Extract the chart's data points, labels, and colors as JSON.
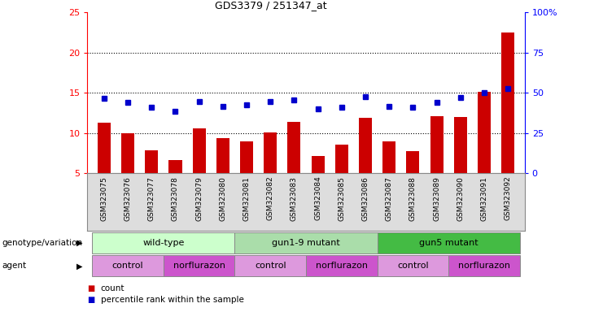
{
  "title": "GDS3379 / 251347_at",
  "samples": [
    "GSM323075",
    "GSM323076",
    "GSM323077",
    "GSM323078",
    "GSM323079",
    "GSM323080",
    "GSM323081",
    "GSM323082",
    "GSM323083",
    "GSM323084",
    "GSM323085",
    "GSM323086",
    "GSM323087",
    "GSM323088",
    "GSM323089",
    "GSM323090",
    "GSM323091",
    "GSM323092"
  ],
  "count_values": [
    11.3,
    10.0,
    7.8,
    6.6,
    10.6,
    9.4,
    9.0,
    10.1,
    11.4,
    7.1,
    8.6,
    11.9,
    9.0,
    7.7,
    12.1,
    12.0,
    15.1,
    22.5
  ],
  "percentile_values": [
    14.3,
    13.8,
    13.2,
    12.7,
    13.9,
    13.3,
    13.5,
    13.9,
    14.1,
    13.0,
    13.2,
    14.5,
    13.3,
    13.2,
    13.8,
    14.4,
    15.0,
    15.5
  ],
  "ylim": [
    5,
    25
  ],
  "yticks_left": [
    5,
    10,
    15,
    20,
    25
  ],
  "bar_color": "#cc0000",
  "dot_color": "#0000cc",
  "grid_dotted_vals": [
    10,
    15,
    20
  ],
  "geno_groups": [
    {
      "label": "wild-type",
      "start": 0,
      "end": 5,
      "color": "#ccffcc"
    },
    {
      "label": "gun1-9 mutant",
      "start": 6,
      "end": 11,
      "color": "#aaddaa"
    },
    {
      "label": "gun5 mutant",
      "start": 12,
      "end": 17,
      "color": "#44bb44"
    }
  ],
  "agent_groups": [
    {
      "label": "control",
      "start": 0,
      "end": 2,
      "color": "#dd99dd"
    },
    {
      "label": "norflurazon",
      "start": 3,
      "end": 5,
      "color": "#cc55cc"
    },
    {
      "label": "control",
      "start": 6,
      "end": 8,
      "color": "#dd99dd"
    },
    {
      "label": "norflurazon",
      "start": 9,
      "end": 11,
      "color": "#cc55cc"
    },
    {
      "label": "control",
      "start": 12,
      "end": 14,
      "color": "#dd99dd"
    },
    {
      "label": "norflurazon",
      "start": 15,
      "end": 17,
      "color": "#cc55cc"
    }
  ],
  "legend_count_color": "#cc0000",
  "legend_pct_color": "#0000cc",
  "xtick_bg": "#dddddd"
}
